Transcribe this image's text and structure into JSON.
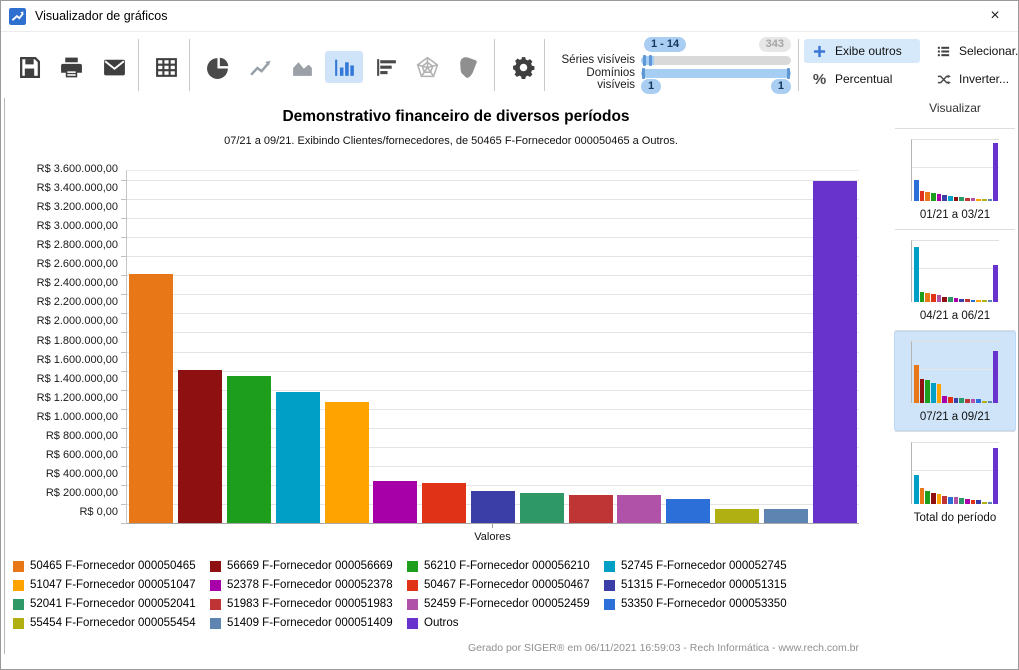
{
  "window": {
    "title": "Visualizador de gráficos",
    "close_glyph": "×"
  },
  "toolbar": {
    "icon_names": [
      "save-icon",
      "print-icon",
      "email-icon",
      "table-icon",
      "pie-chart-icon",
      "line-chart-icon",
      "area-chart-icon",
      "bar-chart-icon",
      "horizontal-bar-chart-icon",
      "radar-chart-icon",
      "map-chart-icon",
      "settings-icon"
    ],
    "selected_tool": "bar-chart",
    "sliders": {
      "series_label": "Séries visíveis",
      "domains_label": "Domínios visíveis",
      "series_range": "1 - 14",
      "series_total": "343",
      "domains_min": "1",
      "domains_max": "1"
    },
    "percent_glyph": "%",
    "buttons": [
      {
        "label": "Exibe outros",
        "selected": true
      },
      {
        "label": "Percentual",
        "selected": false
      },
      {
        "label": "Selecionar...",
        "selected": false
      },
      {
        "label": "Inverter...",
        "selected": false
      }
    ]
  },
  "chart_data": {
    "type": "bar",
    "title": "Demonstrativo financeiro de diversos períodos",
    "subtitle": "07/21 a 09/21. Exibindo Clientes/fornecedores, de 50465 F-Fornecedor 000050465 a Outros.",
    "xlabel": "Valores",
    "ylabel": "",
    "currency_prefix": "R$",
    "ylim": [
      0,
      3600000
    ],
    "ytick_step": 200000,
    "grid": true,
    "legend_position": "bottom",
    "series": [
      {
        "name": "50465 F-Fornecedor 000050465",
        "value": 2615000,
        "color": "#E87817"
      },
      {
        "name": "56669 F-Fornecedor 000056669",
        "value": 1610000,
        "color": "#8F1010"
      },
      {
        "name": "56210 F-Fornecedor 000056210",
        "value": 1540000,
        "color": "#1D9E1D"
      },
      {
        "name": "52745 F-Fornecedor 000052745",
        "value": 1380000,
        "color": "#00A0C6"
      },
      {
        "name": "51047 F-Fornecedor 000051047",
        "value": 1275000,
        "color": "#FFA300"
      },
      {
        "name": "52378 F-Fornecedor 000052378",
        "value": 440000,
        "color": "#A800A8"
      },
      {
        "name": "50467 F-Fornecedor 000050467",
        "value": 420000,
        "color": "#E03217"
      },
      {
        "name": "51315 F-Fornecedor 000051315",
        "value": 335000,
        "color": "#3B3EA6"
      },
      {
        "name": "52041 F-Fornecedor 000052041",
        "value": 315000,
        "color": "#2E9966"
      },
      {
        "name": "51983 F-Fornecedor 000051983",
        "value": 290000,
        "color": "#BF3434"
      },
      {
        "name": "52459 F-Fornecedor 000052459",
        "value": 292000,
        "color": "#B052A8"
      },
      {
        "name": "53350 F-Fornecedor 000053350",
        "value": 255000,
        "color": "#2D6FD9"
      },
      {
        "name": "55454 F-Fornecedor 000055454",
        "value": 150000,
        "color": "#B0B012"
      },
      {
        "name": "51409 F-Fornecedor 000051409",
        "value": 148000,
        "color": "#5E85B2"
      },
      {
        "name": "Outros",
        "value": 3590000,
        "color": "#6733CC"
      }
    ],
    "footer": "Gerado por SIGER® em 06/11/2021 16:59:03 - Rech Informática - www.rech.com.br"
  },
  "sidebar": {
    "header": "Visualizar",
    "items": [
      {
        "label": "01/21 a 03/21",
        "selected": false,
        "bars": [
          [
            "#2D6FD9",
            34
          ],
          [
            "#E03217",
            16
          ],
          [
            "#E87817",
            15
          ],
          [
            "#1D9E1D",
            13
          ],
          [
            "#A800A8",
            11
          ],
          [
            "#3B3EA6",
            10
          ],
          [
            "#00A0C6",
            9
          ],
          [
            "#8F1010",
            7
          ],
          [
            "#2E9966",
            6
          ],
          [
            "#BF3434",
            5
          ],
          [
            "#B052A8",
            5
          ],
          [
            "#FFA300",
            4
          ],
          [
            "#B0B012",
            4
          ],
          [
            "#5E85B2",
            3
          ],
          [
            "#6733CC",
            95
          ]
        ]
      },
      {
        "label": "04/21 a 06/21",
        "selected": false,
        "bars": [
          [
            "#00A0C6",
            90
          ],
          [
            "#1D9E1D",
            16
          ],
          [
            "#E87817",
            15
          ],
          [
            "#E03217",
            13
          ],
          [
            "#B052A8",
            11
          ],
          [
            "#8F1010",
            9
          ],
          [
            "#2E9966",
            8
          ],
          [
            "#A800A8",
            6
          ],
          [
            "#3B3EA6",
            5
          ],
          [
            "#BF3434",
            5
          ],
          [
            "#2D6FD9",
            4
          ],
          [
            "#FFA300",
            4
          ],
          [
            "#B0B012",
            3
          ],
          [
            "#5E85B2",
            3
          ],
          [
            "#6733CC",
            60
          ]
        ]
      },
      {
        "label": "07/21 a 09/21",
        "selected": true,
        "bars": [
          [
            "#E87817",
            63
          ],
          [
            "#8F1010",
            39
          ],
          [
            "#1D9E1D",
            37
          ],
          [
            "#00A0C6",
            33
          ],
          [
            "#FFA300",
            31
          ],
          [
            "#A800A8",
            11
          ],
          [
            "#E03217",
            10
          ],
          [
            "#3B3EA6",
            8
          ],
          [
            "#2E9966",
            8
          ],
          [
            "#BF3434",
            7
          ],
          [
            "#B052A8",
            7
          ],
          [
            "#2D6FD9",
            6
          ],
          [
            "#B0B012",
            4
          ],
          [
            "#5E85B2",
            4
          ],
          [
            "#6733CC",
            86
          ]
        ]
      },
      {
        "label": "Total do período",
        "selected": false,
        "bars": [
          [
            "#00A0C6",
            48
          ],
          [
            "#E87817",
            26
          ],
          [
            "#1D9E1D",
            22
          ],
          [
            "#8F1010",
            18
          ],
          [
            "#FFA300",
            16
          ],
          [
            "#BF3434",
            13
          ],
          [
            "#2D6FD9",
            12
          ],
          [
            "#B052A8",
            11
          ],
          [
            "#2E9966",
            10
          ],
          [
            "#A800A8",
            8
          ],
          [
            "#E03217",
            6
          ],
          [
            "#3B3EA6",
            6
          ],
          [
            "#B0B012",
            4
          ],
          [
            "#5E85B2",
            4
          ],
          [
            "#6733CC",
            92
          ]
        ]
      }
    ]
  }
}
